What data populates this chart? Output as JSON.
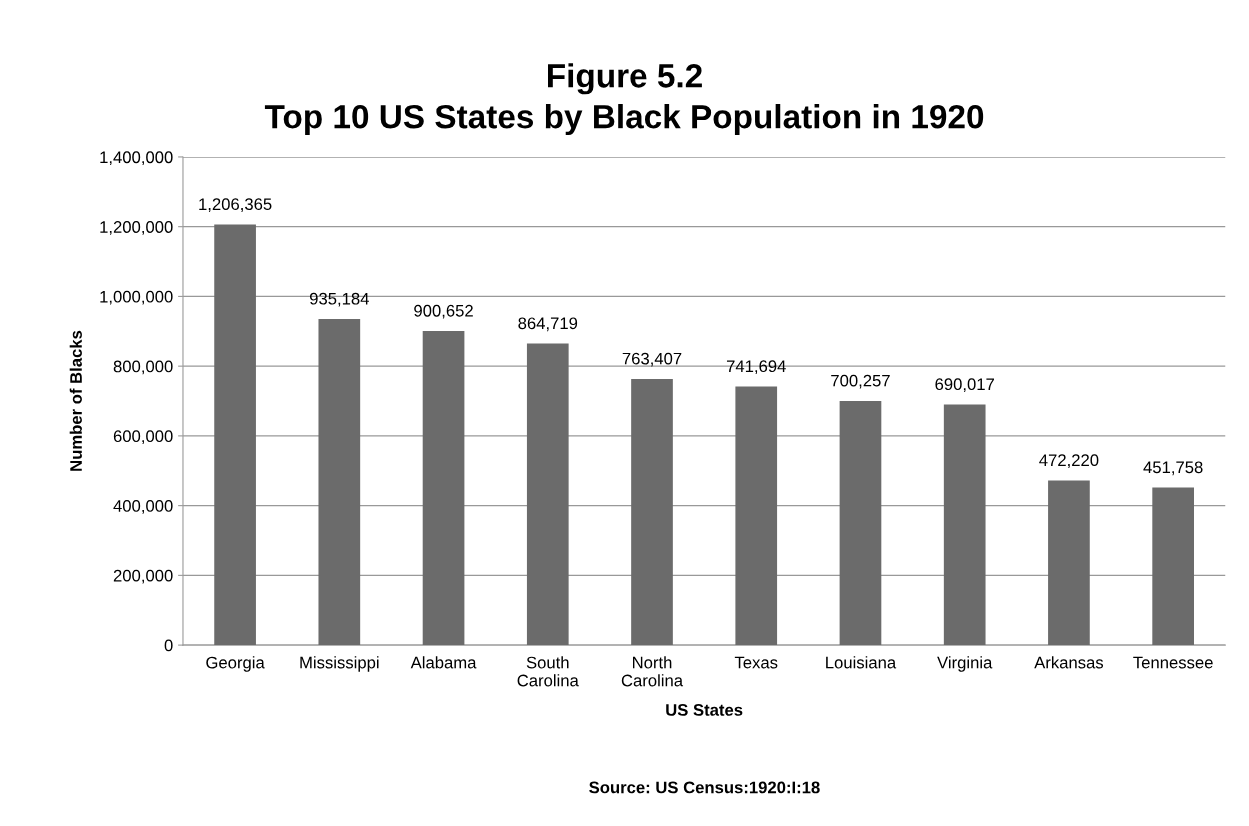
{
  "chart_data": {
    "type": "bar",
    "title": "Figure 5.2\nTop 10 US States by Black Population in 1920",
    "xlabel": "US States",
    "ylabel": "Number of Blacks",
    "categories": [
      "Georgia",
      "Mississippi",
      "Alabama",
      "South\nCarolina",
      "North\nCarolina",
      "Texas",
      "Louisiana",
      "Virginia",
      "Arkansas",
      "Tennessee"
    ],
    "values": [
      1206365,
      935184,
      900652,
      864719,
      763407,
      741694,
      700257,
      690017,
      472220,
      451758
    ],
    "value_labels": [
      "1,206,365",
      "935,184",
      "900,652",
      "864,719",
      "763,407",
      "741,694",
      "700,257",
      "690,017",
      "472,220",
      "451,758"
    ],
    "color": "#6b6b6b",
    "ylim": [
      0,
      1400000
    ],
    "yticks": [
      0,
      {
        "value": 200000,
        "label": "200,000"
      },
      {
        "value": 400000,
        "label": "400,000"
      },
      {
        "value": 600000,
        "label": "600,000"
      },
      {
        "value": 800000,
        "label": "800,000"
      },
      {
        "value": 1000000,
        "label": "1,000,000"
      },
      {
        "value": 1200000,
        "label": "1,200,000"
      },
      {
        "value": 1400000,
        "label": "1,400,000"
      }
    ],
    "grid": "y",
    "legend": false,
    "annotations": [
      "Source: US Census:1920:I:18"
    ]
  }
}
